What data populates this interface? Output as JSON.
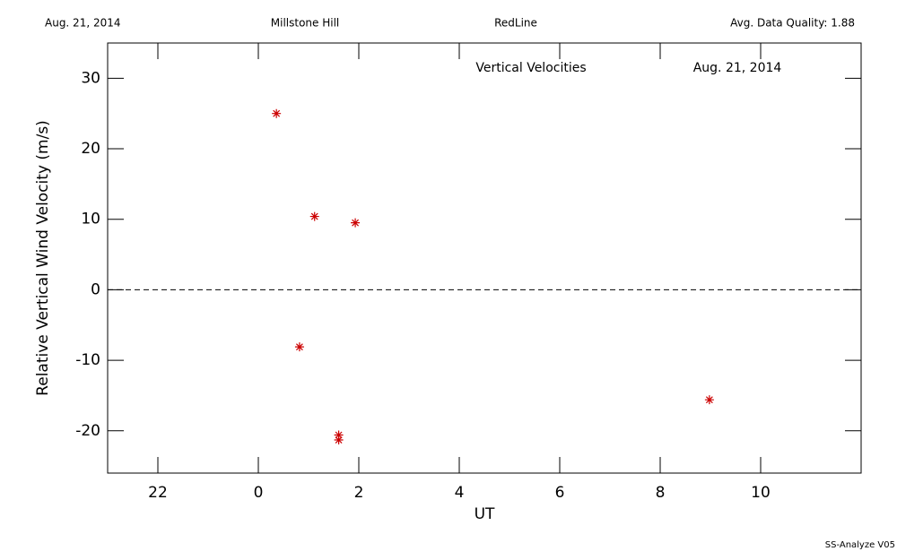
{
  "header": {
    "date": "Aug. 21, 2014",
    "site": "Millstone Hill",
    "instrument": "RedLine",
    "quality": "Avg. Data Quality: 1.88"
  },
  "footer": "SS-Analyze V05",
  "chart_data": {
    "type": "scatter",
    "annotations": [
      "Vertical Velocities",
      "Aug. 21, 2014"
    ],
    "x_label": "UT",
    "y_label": "Relative Vertical Wind Velocity (m/s)",
    "series": [
      {
        "name": "Vertical Velocities",
        "color": "#cc0000",
        "x": [
          0.36,
          1.12,
          1.93,
          0.82,
          1.6,
          1.6,
          8.98
        ],
        "values": [
          25.0,
          10.4,
          9.5,
          -8.1,
          -20.6,
          -21.3,
          -15.6
        ]
      }
    ],
    "xlim": [
      -3,
      12
    ],
    "xticks": [
      {
        "value": -2,
        "label": "22"
      },
      0,
      2,
      4,
      6,
      8,
      10
    ],
    "ylim": [
      -26,
      35
    ],
    "yticks": [
      -20,
      -10,
      0,
      10,
      20,
      30
    ],
    "zero_line": true
  }
}
